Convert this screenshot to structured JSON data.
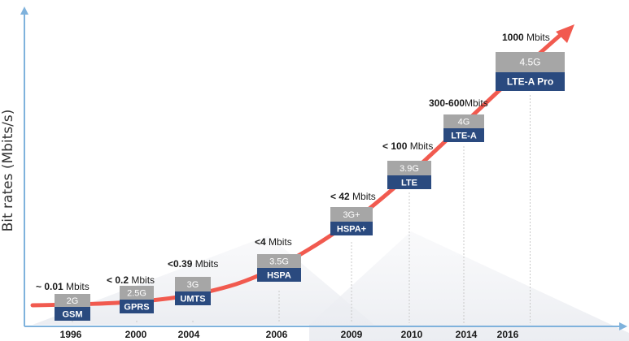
{
  "chart_data": {
    "type": "line",
    "ylabel": "Bit rates (Mbits/s)",
    "xlabel": "",
    "colors": {
      "axis": "#7fb2dc",
      "trend": "#f15a4f",
      "gen_box": "#a6a6a6",
      "tech_box": "#2a4a7f"
    },
    "points": [
      {
        "year": "1996",
        "rate_prefix": "~",
        "rate_value": "0.01",
        "rate_unit": "Mbits",
        "generation": "2G",
        "technology": "GSM"
      },
      {
        "year": "2000",
        "rate_prefix": "<",
        "rate_value": "0.2",
        "rate_unit": "Mbits",
        "generation": "2.5G",
        "technology": "GPRS"
      },
      {
        "year": "2004",
        "rate_prefix": "<",
        "rate_value": "0.39",
        "rate_unit": "Mbits",
        "generation": "3G",
        "technology": "UMTS"
      },
      {
        "year": "2006",
        "rate_prefix": "<",
        "rate_value": "4",
        "rate_unit": "Mbits",
        "generation": "3.5G",
        "technology": "HSPA"
      },
      {
        "year": "2009",
        "rate_prefix": "<",
        "rate_value": "42",
        "rate_unit": "Mbits",
        "generation": "3G+",
        "technology": "HSPA+"
      },
      {
        "year": "2010",
        "rate_prefix": "<",
        "rate_value": "100",
        "rate_unit": "Mbits",
        "generation": "3.9G",
        "technology": "LTE"
      },
      {
        "year": "2014",
        "rate_prefix": "",
        "rate_value": "300-600",
        "rate_unit": "Mbits",
        "generation": "4G",
        "technology": "LTE-A"
      },
      {
        "year": "2016",
        "rate_prefix": "",
        "rate_value": "1000",
        "rate_unit": "Mbits",
        "generation": "4.5G",
        "technology": "LTE-A Pro"
      }
    ]
  }
}
